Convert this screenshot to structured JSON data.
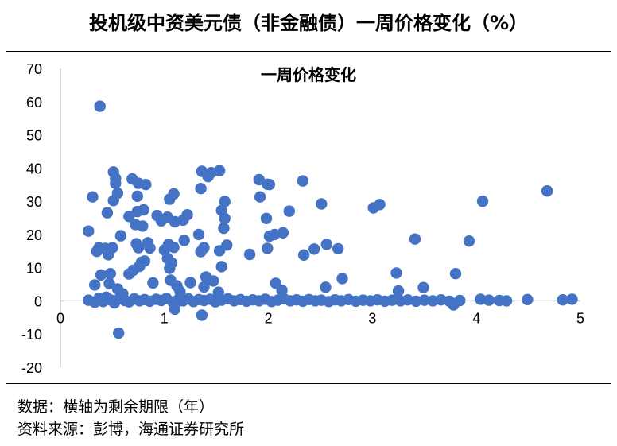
{
  "header": {
    "title": "投机级中资美元债（非金融债）一周价格变化（%）"
  },
  "footer": {
    "note": "数据：横轴为剩余期限（年）",
    "source": "资料来源：彭博，海通证券研究所"
  },
  "colors": {
    "point": "#4472C4",
    "axis": "#bfbfbf"
  },
  "chart_data": {
    "type": "scatter",
    "title": "一周价格变化",
    "xlim": [
      0,
      5
    ],
    "ylim": [
      -20,
      70
    ],
    "x_ticks": [
      "0",
      "1",
      "2",
      "3",
      "4",
      "5"
    ],
    "y_ticks": [
      "70",
      "60",
      "50",
      "40",
      "30",
      "20",
      "10",
      "0",
      "-10",
      "-20"
    ],
    "grid": false,
    "legend": "none",
    "points": [
      [
        0.38,
        58.6
      ],
      [
        0.51,
        38.8
      ],
      [
        0.53,
        36.9
      ],
      [
        0.53,
        35.4
      ],
      [
        0.31,
        31.3
      ],
      [
        0.55,
        32.4
      ],
      [
        0.51,
        30.2
      ],
      [
        0.45,
        26.5
      ],
      [
        0.66,
        25.4
      ],
      [
        0.27,
        21.0
      ],
      [
        0.58,
        19.6
      ],
      [
        0.37,
        16.0
      ],
      [
        0.35,
        14.9
      ],
      [
        0.43,
        15.8
      ],
      [
        0.46,
        13.9
      ],
      [
        0.5,
        16.0
      ],
      [
        0.39,
        7.8
      ],
      [
        0.48,
        8.2
      ],
      [
        0.33,
        4.8
      ],
      [
        0.55,
        3.6
      ],
      [
        0.6,
        2.1
      ],
      [
        0.56,
        -9.7
      ],
      [
        0.47,
        5.2
      ],
      [
        0.69,
        36.7
      ],
      [
        0.75,
        35.4
      ],
      [
        0.82,
        35.0
      ],
      [
        0.74,
        31.5
      ],
      [
        0.8,
        27.4
      ],
      [
        0.74,
        26.9
      ],
      [
        0.72,
        23.0
      ],
      [
        0.73,
        17.2
      ],
      [
        0.75,
        16.0
      ],
      [
        0.84,
        17.5
      ],
      [
        0.79,
        22.5
      ],
      [
        0.86,
        15.9
      ],
      [
        0.78,
        11.6
      ],
      [
        0.76,
        10.4
      ],
      [
        0.7,
        9.2
      ],
      [
        0.66,
        8.1
      ],
      [
        0.89,
        5.4
      ],
      [
        0.81,
        12.0
      ],
      [
        0.93,
        25.7
      ],
      [
        0.97,
        24.1
      ],
      [
        1.03,
        25.2
      ],
      [
        1.05,
        30.6
      ],
      [
        1.09,
        32.2
      ],
      [
        1.1,
        23.8
      ],
      [
        1.18,
        24.3
      ],
      [
        1.22,
        25.9
      ],
      [
        1.0,
        15.3
      ],
      [
        1.03,
        12.8
      ],
      [
        1.07,
        11.4
      ],
      [
        1.05,
        9.8
      ],
      [
        1.09,
        16.1
      ],
      [
        1.04,
        17.0
      ],
      [
        1.1,
        -2.5
      ],
      [
        1.06,
        6.2
      ],
      [
        1.12,
        4.5
      ],
      [
        1.15,
        2.8
      ],
      [
        1.25,
        5.5
      ],
      [
        1.19,
        18.2
      ],
      [
        1.36,
        39.0
      ],
      [
        1.45,
        38.6
      ],
      [
        1.42,
        37.4
      ],
      [
        1.53,
        39.2
      ],
      [
        1.35,
        33.8
      ],
      [
        1.58,
        29.9
      ],
      [
        1.55,
        27.2
      ],
      [
        1.58,
        24.8
      ],
      [
        1.33,
        20.0
      ],
      [
        1.57,
        21.9
      ],
      [
        1.38,
        16.0
      ],
      [
        1.35,
        14.8
      ],
      [
        1.53,
        15.1
      ],
      [
        1.6,
        16.8
      ],
      [
        1.55,
        10.3
      ],
      [
        1.4,
        7.2
      ],
      [
        1.47,
        6.0
      ],
      [
        1.38,
        4.2
      ],
      [
        1.36,
        -4.3
      ],
      [
        1.52,
        2.6
      ],
      [
        1.82,
        14.0
      ],
      [
        1.91,
        36.5
      ],
      [
        1.92,
        31.3
      ],
      [
        1.99,
        35.1
      ],
      [
        2.01,
        35.0
      ],
      [
        1.98,
        24.8
      ],
      [
        2.01,
        19.5
      ],
      [
        2.06,
        20.0
      ],
      [
        2.14,
        20.5
      ],
      [
        1.99,
        15.8
      ],
      [
        2.2,
        27.0
      ],
      [
        2.07,
        5.3
      ],
      [
        2.13,
        3.2
      ],
      [
        2.33,
        36.1
      ],
      [
        2.34,
        13.8
      ],
      [
        2.44,
        15.6
      ],
      [
        2.51,
        29.2
      ],
      [
        2.56,
        17.0
      ],
      [
        2.67,
        15.7
      ],
      [
        2.55,
        4.1
      ],
      [
        2.71,
        6.7
      ],
      [
        3.01,
        28.0
      ],
      [
        3.07,
        29.0
      ],
      [
        3.23,
        8.4
      ],
      [
        3.41,
        18.6
      ],
      [
        3.49,
        4.0
      ],
      [
        3.8,
        8.2
      ],
      [
        3.93,
        18.0
      ],
      [
        4.06,
        30.0
      ],
      [
        4.68,
        33.1
      ],
      [
        3.78,
        -1.2
      ],
      [
        3.25,
        3.0
      ]
    ],
    "baseline_points": [
      [
        0.27,
        0.2
      ],
      [
        0.33,
        -0.4
      ],
      [
        0.37,
        0.8
      ],
      [
        0.41,
        -0.2
      ],
      [
        0.44,
        1.1
      ],
      [
        0.48,
        0.3
      ],
      [
        0.52,
        -0.6
      ],
      [
        0.57,
        0.9
      ],
      [
        0.62,
        0.1
      ],
      [
        0.66,
        -0.3
      ],
      [
        0.71,
        0.6
      ],
      [
        0.76,
        0.0
      ],
      [
        0.81,
        0.4
      ],
      [
        0.86,
        -0.1
      ],
      [
        0.92,
        0.5
      ],
      [
        0.97,
        0.1
      ],
      [
        1.02,
        0.7
      ],
      [
        1.08,
        -0.3
      ],
      [
        1.13,
        0.3
      ],
      [
        1.18,
        0.0
      ],
      [
        1.23,
        0.6
      ],
      [
        1.28,
        -0.2
      ],
      [
        1.33,
        0.4
      ],
      [
        1.38,
        0.1
      ],
      [
        1.44,
        0.5
      ],
      [
        1.49,
        -0.3
      ],
      [
        1.55,
        0.2
      ],
      [
        1.61,
        0.6
      ],
      [
        1.67,
        0.0
      ],
      [
        1.73,
        0.4
      ],
      [
        1.79,
        -0.1
      ],
      [
        1.85,
        0.3
      ],
      [
        1.91,
        0.0
      ],
      [
        1.97,
        0.5
      ],
      [
        2.03,
        -0.2
      ],
      [
        2.09,
        0.2
      ],
      [
        2.15,
        0.6
      ],
      [
        2.21,
        0.0
      ],
      [
        2.27,
        0.3
      ],
      [
        2.33,
        -0.1
      ],
      [
        2.39,
        0.4
      ],
      [
        2.45,
        0.0
      ],
      [
        2.51,
        0.2
      ],
      [
        2.58,
        -0.2
      ],
      [
        2.64,
        0.3
      ],
      [
        2.7,
        0.0
      ],
      [
        2.77,
        0.4
      ],
      [
        2.84,
        -0.1
      ],
      [
        2.91,
        0.2
      ],
      [
        2.98,
        0.0
      ],
      [
        3.05,
        0.3
      ],
      [
        3.12,
        -0.1
      ],
      [
        3.19,
        0.2
      ],
      [
        3.27,
        0.0
      ],
      [
        3.34,
        0.3
      ],
      [
        3.42,
        -0.1
      ],
      [
        3.5,
        0.2
      ],
      [
        3.58,
        0.0
      ],
      [
        3.66,
        0.3
      ],
      [
        3.74,
        -0.1
      ],
      [
        3.84,
        0.1
      ],
      [
        4.04,
        0.5
      ],
      [
        4.12,
        0.2
      ],
      [
        4.22,
        0.1
      ],
      [
        4.29,
        0.0
      ],
      [
        4.49,
        0.4
      ],
      [
        4.83,
        0.3
      ],
      [
        4.92,
        0.5
      ]
    ]
  }
}
